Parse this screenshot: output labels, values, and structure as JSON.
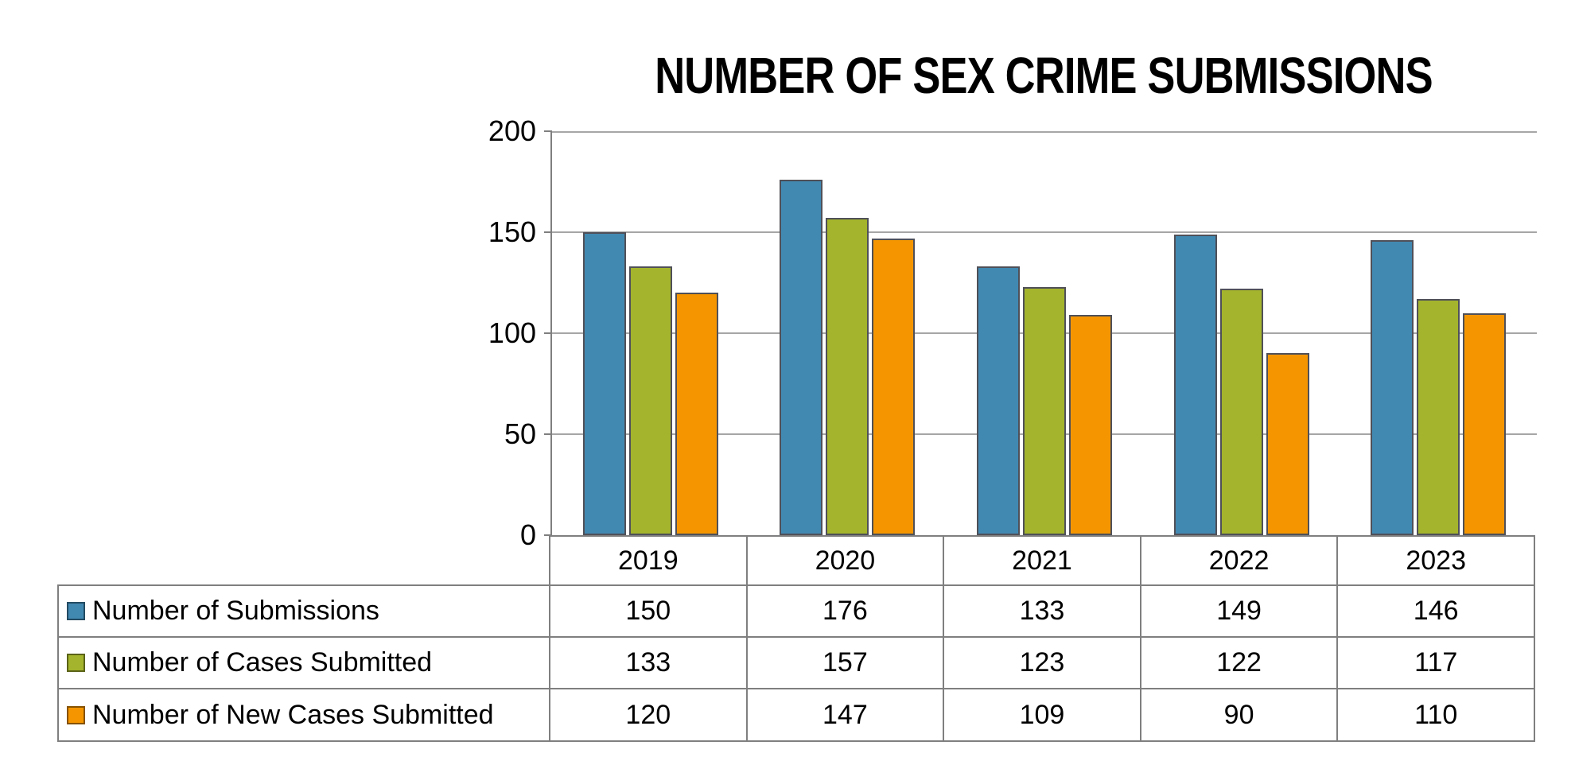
{
  "title": "NUMBER OF SEX CRIME SUBMISSIONS",
  "colors": {
    "series_blue": "#4289B2",
    "series_green": "#A4B42C",
    "series_orange": "#F59600",
    "bar_border": "#4F5058",
    "gridline": "#A6A6A6",
    "axis_and_table_border": "#7F7F7F",
    "background": "#FFFFFF",
    "text": "#000000"
  },
  "chart_data": {
    "type": "bar",
    "title": "NUMBER OF SEX CRIME SUBMISSIONS",
    "categories": [
      "2019",
      "2020",
      "2021",
      "2022",
      "2023"
    ],
    "series": [
      {
        "name": "Number of Submissions",
        "color": "#4289B2",
        "values": [
          150,
          176,
          133,
          149,
          146
        ]
      },
      {
        "name": "Number of Cases Submitted",
        "color": "#A4B42C",
        "values": [
          133,
          157,
          123,
          122,
          117
        ]
      },
      {
        "name": "Number of New Cases Submitted",
        "color": "#F59600",
        "values": [
          120,
          147,
          109,
          90,
          110
        ]
      }
    ],
    "xlabel": "",
    "ylabel": "",
    "ylim": [
      0,
      200
    ],
    "yticks": [
      0,
      50,
      100,
      150,
      200
    ],
    "grid": true,
    "legend_position": "table-left",
    "data_table_shown": true
  }
}
